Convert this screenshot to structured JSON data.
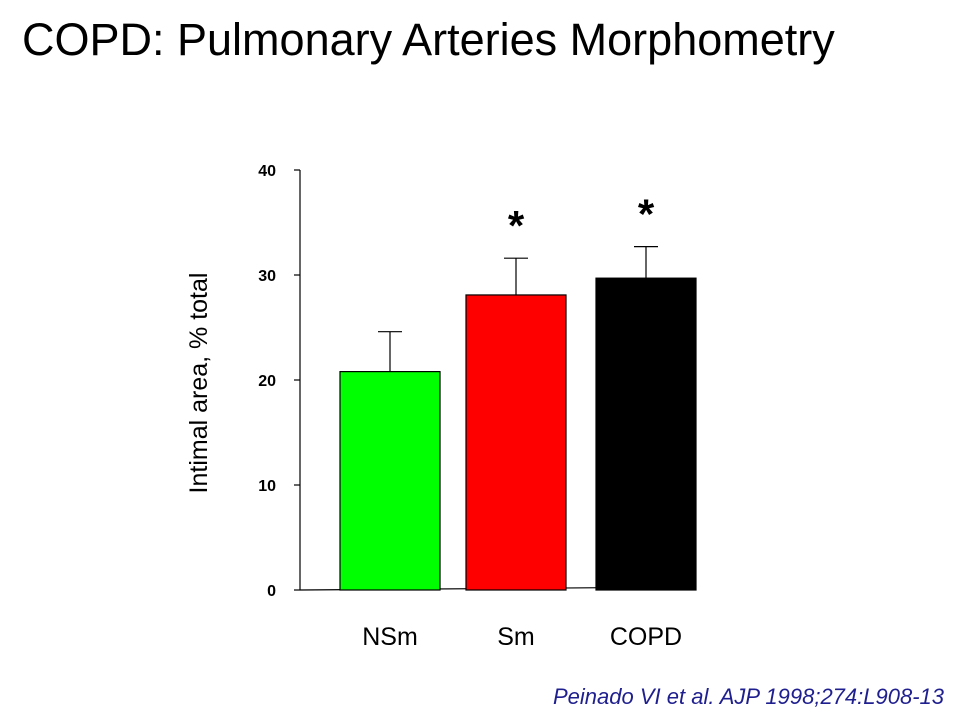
{
  "slide": {
    "title": "COPD: Pulmonary Arteries Morphometry",
    "citation": "Peinado VI et al. AJP 1998;274:L908-13"
  },
  "chart_data": {
    "type": "bar",
    "title": "",
    "xlabel": "",
    "ylabel": "Intimal area,  %  total",
    "ylim": [
      0,
      40
    ],
    "yticks": [
      0,
      10,
      20,
      30,
      40
    ],
    "grid": false,
    "categories": [
      "NSm",
      "Sm",
      "COPD"
    ],
    "values": [
      20.8,
      28.1,
      29.7
    ],
    "errors": [
      3.8,
      3.5,
      3.0
    ],
    "colors": [
      "#00ff00",
      "#ff0000",
      "#000000"
    ],
    "significance": [
      "",
      "*",
      "*"
    ]
  }
}
